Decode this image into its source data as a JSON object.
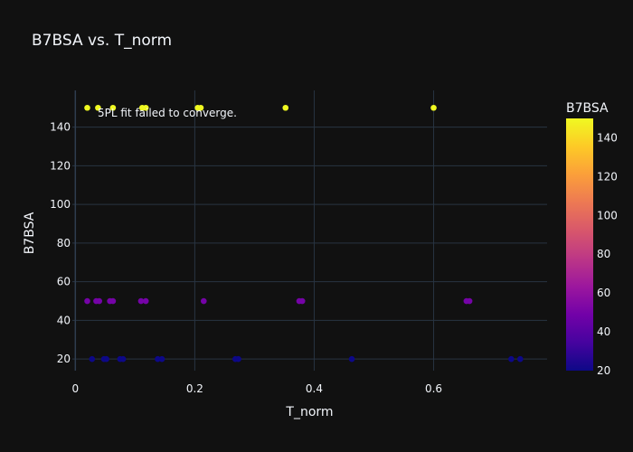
{
  "chart_data": {
    "type": "scatter",
    "title": "B7BSA vs. T_norm",
    "xlabel": "T_norm",
    "ylabel": "B7BSA",
    "xlim": [
      -0.005,
      0.79
    ],
    "ylim": [
      14,
      159
    ],
    "x_ticks": [
      0,
      0.2,
      0.4,
      0.6
    ],
    "x_tick_labels": [
      "0",
      "0.2",
      "0.4",
      "0.6"
    ],
    "y_ticks": [
      20,
      40,
      60,
      80,
      100,
      120,
      140
    ],
    "y_tick_labels": [
      "20",
      "40",
      "60",
      "80",
      "100",
      "120",
      "140"
    ],
    "grid": true,
    "annotation": "5PL fit failed to converge.",
    "colorbar": {
      "title": "B7BSA",
      "range": [
        20,
        150
      ],
      "ticks": [
        20,
        40,
        60,
        80,
        100,
        120,
        140
      ],
      "tick_labels": [
        "20",
        "40",
        "60",
        "80",
        "100",
        "120",
        "140"
      ],
      "colorscale": [
        "#0d0887",
        "#46039f",
        "#7201a8",
        "#9c179e",
        "#bd3786",
        "#d8576b",
        "#ed7953",
        "#fb9f3a",
        "#fdca26",
        "#f0f921"
      ]
    },
    "points": [
      {
        "x": 0.02,
        "y": 150
      },
      {
        "x": 0.038,
        "y": 150
      },
      {
        "x": 0.063,
        "y": 150
      },
      {
        "x": 0.112,
        "y": 150
      },
      {
        "x": 0.118,
        "y": 150
      },
      {
        "x": 0.205,
        "y": 150
      },
      {
        "x": 0.21,
        "y": 150
      },
      {
        "x": 0.352,
        "y": 150
      },
      {
        "x": 0.6,
        "y": 150
      },
      {
        "x": 0.02,
        "y": 50
      },
      {
        "x": 0.035,
        "y": 50
      },
      {
        "x": 0.04,
        "y": 50
      },
      {
        "x": 0.058,
        "y": 50
      },
      {
        "x": 0.063,
        "y": 50
      },
      {
        "x": 0.11,
        "y": 50
      },
      {
        "x": 0.118,
        "y": 50
      },
      {
        "x": 0.215,
        "y": 50
      },
      {
        "x": 0.375,
        "y": 50
      },
      {
        "x": 0.38,
        "y": 50
      },
      {
        "x": 0.655,
        "y": 50
      },
      {
        "x": 0.66,
        "y": 50
      },
      {
        "x": 0.028,
        "y": 20
      },
      {
        "x": 0.048,
        "y": 20
      },
      {
        "x": 0.052,
        "y": 20
      },
      {
        "x": 0.075,
        "y": 20
      },
      {
        "x": 0.08,
        "y": 20
      },
      {
        "x": 0.138,
        "y": 20
      },
      {
        "x": 0.145,
        "y": 20
      },
      {
        "x": 0.268,
        "y": 20
      },
      {
        "x": 0.273,
        "y": 20
      },
      {
        "x": 0.463,
        "y": 20
      },
      {
        "x": 0.73,
        "y": 20
      },
      {
        "x": 0.745,
        "y": 20
      }
    ]
  }
}
